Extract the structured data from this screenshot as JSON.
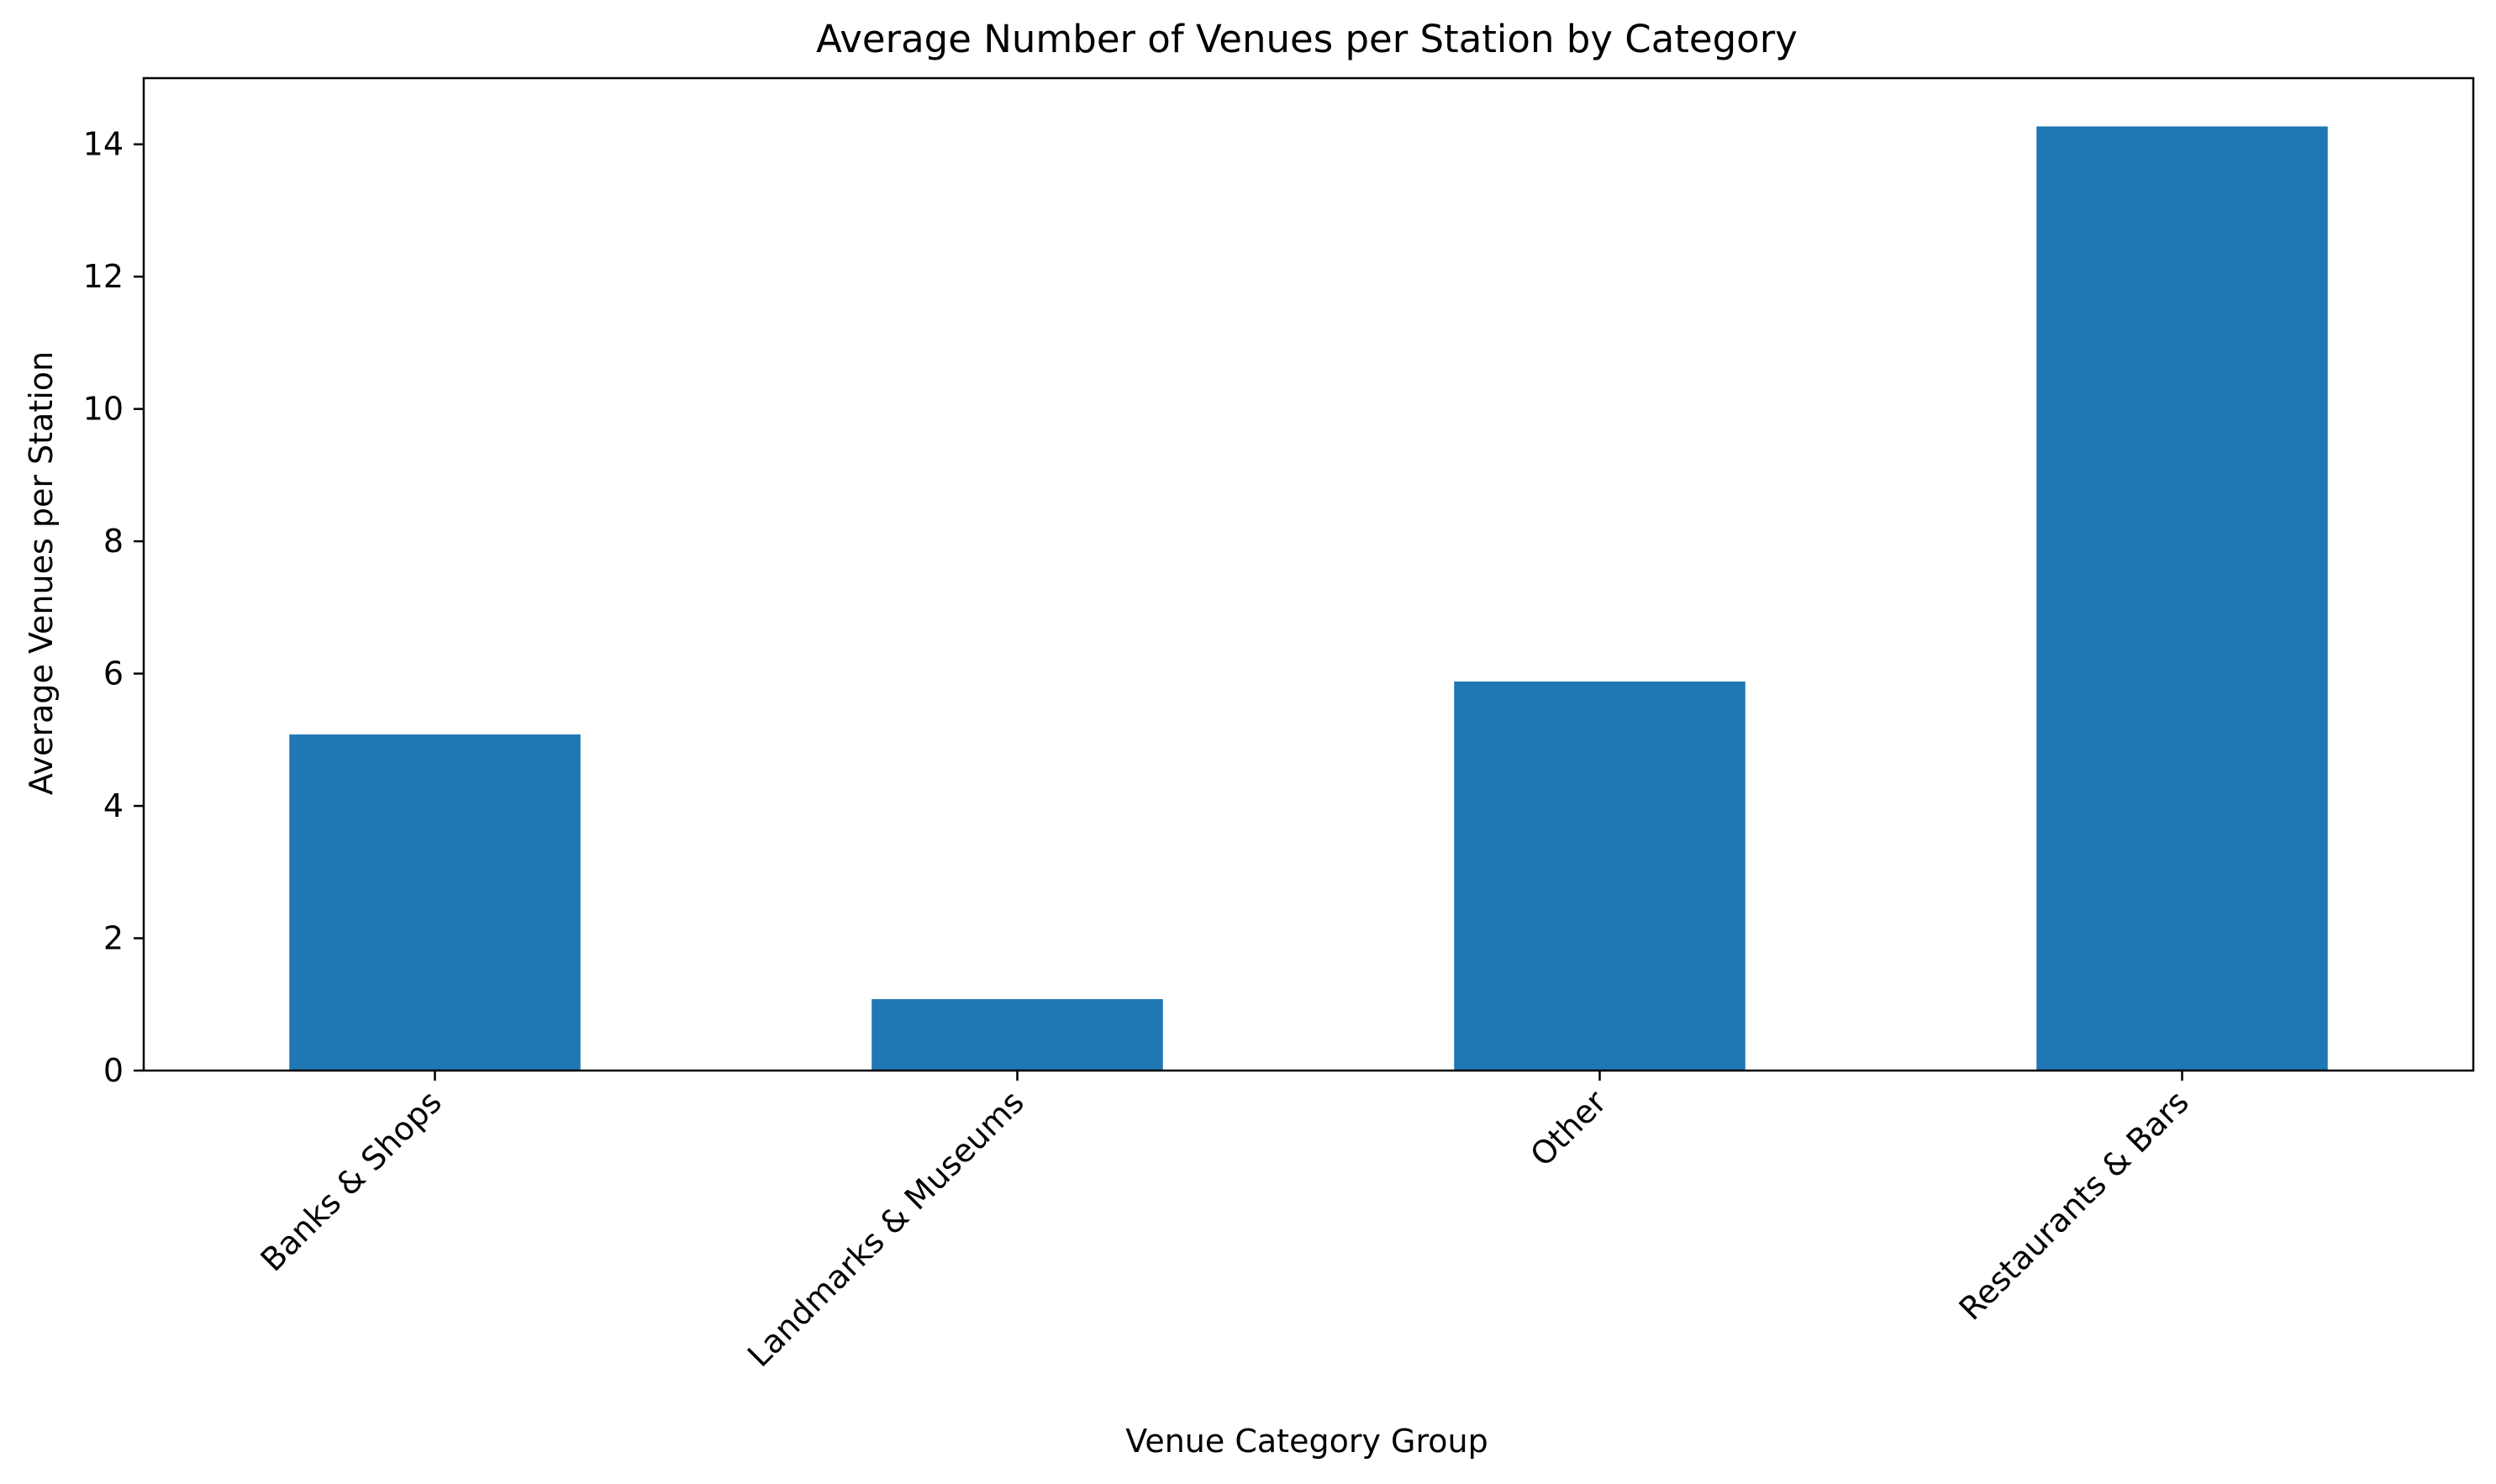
{
  "chart_data": {
    "type": "bar",
    "title": "Average Number of Venues per Station by Category",
    "xlabel": "Venue Category Group",
    "ylabel": "Average Venues per Station",
    "categories": [
      "Banks & Shops",
      "Landmarks & Museums",
      "Other",
      "Restaurants & Bars"
    ],
    "values": [
      5.08,
      1.08,
      5.88,
      14.27
    ],
    "ylim": [
      0,
      15
    ],
    "yticks": [
      0,
      2,
      4,
      6,
      8,
      10,
      12,
      14
    ],
    "bar_color": "#1f77b4",
    "grid": false,
    "legend": "none"
  }
}
